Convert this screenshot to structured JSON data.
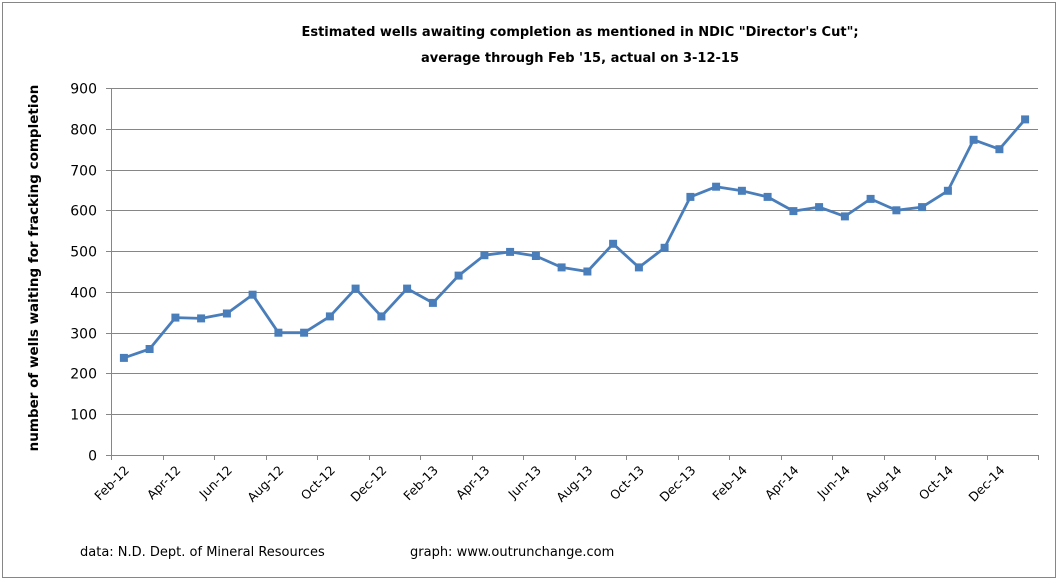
{
  "chart_data": {
    "type": "line",
    "title_lines": [
      "Estimated wells awaiting completion as mentioned in NDIC \"Director's Cut\";",
      "average through Feb '15, actual on 3-12-15"
    ],
    "xlabel": "",
    "ylabel": "number of wells waiting for fracking completion",
    "ylim": [
      0,
      900
    ],
    "yticks": [
      "0",
      "100",
      "200",
      "300",
      "400",
      "500",
      "600",
      "700",
      "800",
      "900"
    ],
    "ytick_values": [
      0,
      100,
      200,
      300,
      400,
      500,
      600,
      700,
      800,
      900
    ],
    "grid": true,
    "legend": "none",
    "categories": [
      "Feb-12",
      "Mar-12",
      "Apr-12",
      "May-12",
      "Jun-12",
      "Jul-12",
      "Aug-12",
      "Sep-12",
      "Oct-12",
      "Nov-12",
      "Dec-12",
      "Jan-13",
      "Feb-13",
      "Mar-13",
      "Apr-13",
      "May-13",
      "Jun-13",
      "Jul-13",
      "Aug-13",
      "Sep-13",
      "Oct-13",
      "Nov-13",
      "Dec-13",
      "Jan-14",
      "Feb-14",
      "Mar-14",
      "Apr-14",
      "May-14",
      "Jun-14",
      "Jul-14",
      "Aug-14",
      "Sep-14",
      "Oct-14",
      "Nov-14",
      "Dec-14",
      "Jan-15"
    ],
    "xtick_labels": [
      "Feb-12",
      "Apr-12",
      "Jun-12",
      "Aug-12",
      "Oct-12",
      "Dec-12",
      "Feb-13",
      "Apr-13",
      "Jun-13",
      "Aug-13",
      "Oct-13",
      "Dec-13",
      "Feb-14",
      "Apr-14",
      "Jun-14",
      "Aug-14",
      "Oct-14",
      "Dec-14"
    ],
    "series": [
      {
        "name": "wells awaiting completion",
        "color": "#4A7EBB",
        "marker": "square",
        "values": [
          238,
          260,
          337,
          335,
          347,
          393,
          300,
          300,
          340,
          408,
          340,
          408,
          373,
          440,
          490,
          498,
          488,
          460,
          450,
          518,
          460,
          508,
          633,
          658,
          648,
          633,
          598,
          608,
          585,
          628,
          600,
          608,
          648,
          773,
          750,
          823
        ]
      }
    ],
    "footer": {
      "source": "data: N.D. Dept. of Mineral Resources",
      "credit": "graph:  www.outrunchange.com"
    },
    "colors": {
      "gridline": "#868686",
      "axis": "#868686"
    }
  }
}
